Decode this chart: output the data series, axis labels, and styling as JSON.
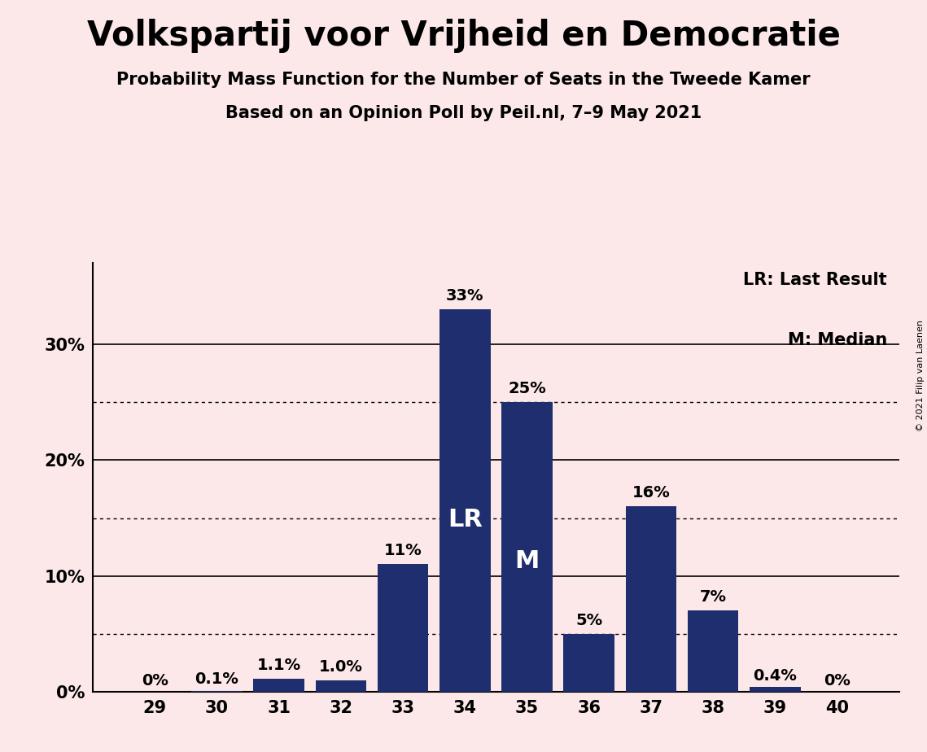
{
  "title": "Volkspartij voor Vrijheid en Democratie",
  "subtitle1": "Probability Mass Function for the Number of Seats in the Tweede Kamer",
  "subtitle2": "Based on an Opinion Poll by Peil.nl, 7–9 May 2021",
  "copyright": "© 2021 Filip van Laenen",
  "categories": [
    29,
    30,
    31,
    32,
    33,
    34,
    35,
    36,
    37,
    38,
    39,
    40
  ],
  "values": [
    0.0,
    0.1,
    1.1,
    1.0,
    11.0,
    33.0,
    25.0,
    5.0,
    16.0,
    7.0,
    0.4,
    0.0
  ],
  "labels": [
    "0%",
    "0.1%",
    "1.1%",
    "1.0%",
    "11%",
    "33%",
    "25%",
    "5%",
    "16%",
    "7%",
    "0.4%",
    "0%"
  ],
  "bar_color": "#1e2e6e",
  "background_color": "#fce8e8",
  "ylim_max": 37,
  "solid_gridlines": [
    0,
    10,
    20,
    30
  ],
  "dotted_gridlines": [
    5,
    15,
    25
  ],
  "ytick_values": [
    0,
    10,
    20,
    30
  ],
  "ytick_labels": [
    "0%",
    "10%",
    "20%",
    "30%"
  ],
  "lr_seat": 34,
  "lr_label": "LR",
  "median_seat": 35,
  "median_label": "M",
  "legend_lr": "LR: Last Result",
  "legend_m": "M: Median",
  "title_fontsize": 30,
  "subtitle_fontsize": 15,
  "tick_fontsize": 15,
  "bar_label_fontsize": 14,
  "inside_label_fontsize": 22,
  "legend_fontsize": 15,
  "copyright_fontsize": 8
}
